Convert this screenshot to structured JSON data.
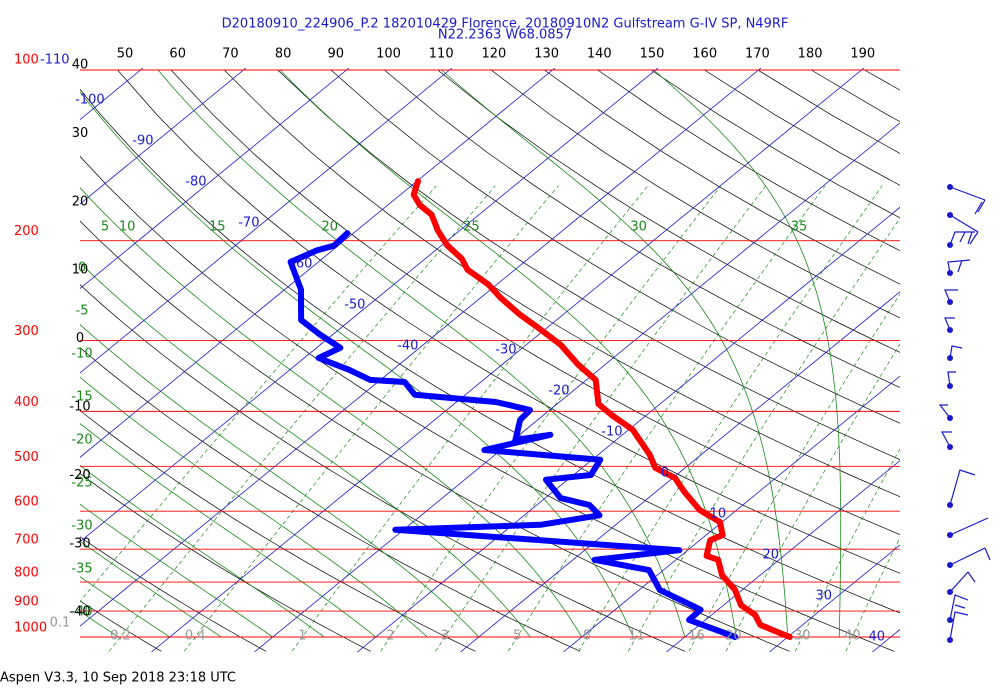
{
  "chart_data": {
    "type": "skewt",
    "title": "D20180910_224906_P.2 182010429 Florence, 20180910N2 Gulfstream G-IV SP, N49RF",
    "subtitle": "N22.2363 W68.0857",
    "footer": "Aspen V3.3, 10 Sep 2018  23:18 UTC",
    "ylim": [
      1000,
      100
    ],
    "yticks": [
      100,
      200,
      300,
      400,
      500,
      600,
      700,
      800,
      900,
      1000
    ],
    "log_y": true,
    "pressure_color": "#ff0000",
    "top_ticks": [
      50,
      60,
      70,
      80,
      90,
      100,
      110,
      120,
      130,
      140,
      150,
      160,
      170,
      180,
      190
    ],
    "isotherms": [
      -110,
      -100,
      -90,
      -80,
      -70,
      -60,
      -50,
      -40,
      -30,
      -20,
      -10,
      0,
      10,
      20,
      30,
      40
    ],
    "isotherm_color": "#1a1acc",
    "height_labels": [
      40,
      30,
      20,
      10,
      0,
      -10,
      -20,
      -30,
      -40
    ],
    "moist_adiabats_top": [
      5,
      10,
      15,
      20,
      25,
      30,
      35
    ],
    "moist_adiabats_left": [
      0,
      -5,
      -10,
      -15,
      -20,
      -25,
      -30,
      -35,
      -40
    ],
    "moist_color": "#1a8a1a",
    "mixing_ratios": [
      0.1,
      0.2,
      0.4,
      1,
      2,
      3,
      5,
      8,
      11,
      16,
      20,
      30,
      40
    ],
    "mixing_label_color": "#999999",
    "series": [
      {
        "color": "#ff0000",
        "values": [
          -59.9,
          -58.7,
          -56.9,
          -54.6,
          -52.1,
          -49.4,
          -46.5,
          -44.6,
          -40.8,
          -38.1,
          -34.2,
          -30.4,
          -26.7,
          -22.6,
          -19.1,
          -16.0,
          -13.4,
          -9.6,
          -5.0,
          -2.9,
          0.2,
          2.8,
          6.4,
          9.8,
          11.6,
          11.0,
          12.5,
          14.1,
          16.3,
          19.3,
          21.7,
          24.2,
          25.9,
          30.2
        ],
        "pressure": [
          157,
          166,
          173,
          180,
          192,
          204,
          215,
          225,
          239,
          252,
          270,
          287,
          305,
          331,
          352,
          388,
          406,
          431,
          477,
          503,
          524,
          555,
          597,
          627,
          661,
          675,
          719,
          731,
          778,
          826,
          879,
          914,
          952,
          1000
        ]
      },
      {
        "color": "#0000ff",
        "values": [
          -60.6,
          -60.4,
          -61.5,
          -62.7,
          -58.4,
          -54.8,
          -51.2,
          -47.7,
          -48.6,
          -44.2,
          -41.0,
          -37.4,
          -34.9,
          -26.2,
          -24.5,
          -21.9,
          -21.7,
          -19.8,
          -17.0,
          -21.6,
          -9.2,
          -8.3,
          -12.1,
          -8.5,
          -4.9,
          -2.7,
          -7.3,
          -20.8,
          9.2,
          2.1,
          8.6,
          12.0,
          18.3,
          18.4,
          24.9
        ],
        "pressure": [
          194,
          204,
          208,
          218,
          244,
          276,
          293,
          309,
          322,
          338,
          352,
          355,
          374,
          385,
          390,
          398,
          414,
          449,
          440,
          468,
          487,
          518,
          528,
          569,
          585,
          610,
          634,
          647,
          703,
          731,
          762,
          826,
          895,
          933,
          1000
        ]
      }
    ]
  }
}
